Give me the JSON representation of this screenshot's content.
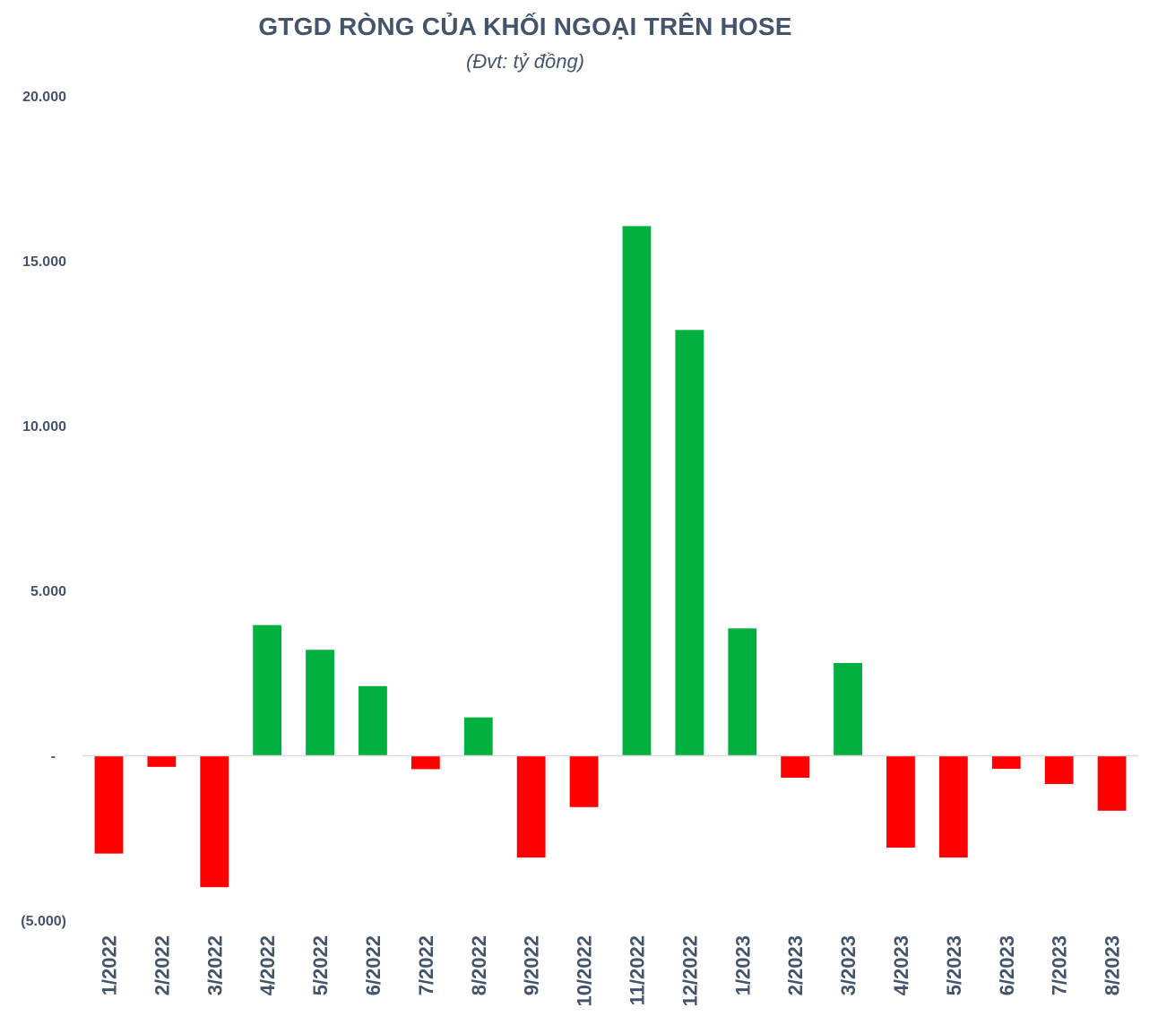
{
  "chart_data": {
    "type": "bar",
    "title": "GTGD RÒNG CỦA KHỐI NGOẠI TRÊN HOSE",
    "subtitle": "(Đvt: tỷ đồng)",
    "xlabel": "",
    "ylabel": "",
    "ylim": [
      -5000,
      20000
    ],
    "yticks": [
      -5000,
      0,
      5000,
      10000,
      15000,
      20000
    ],
    "ytick_labels": [
      "(5.000)",
      "-",
      "5.000",
      "10.000",
      "15.000",
      "20.000"
    ],
    "grid": false,
    "legend": "none",
    "categories": [
      "1/2022",
      "2/2022",
      "3/2022",
      "4/2022",
      "5/2022",
      "6/2022",
      "7/2022",
      "8/2022",
      "9/2022",
      "10/2022",
      "11/2022",
      "12/2022",
      "1/2023",
      "2/2023",
      "3/2023",
      "4/2023",
      "5/2023",
      "6/2023",
      "7/2023",
      "8/2023"
    ],
    "values": [
      -2980,
      -350,
      -4000,
      3950,
      3200,
      2100,
      -420,
      1150,
      -3100,
      -1570,
      16050,
      12900,
      3850,
      -680,
      2800,
      -2800,
      -3100,
      -410,
      -870,
      -1680
    ],
    "colors": {
      "positive": "#00b140",
      "negative": "#ff0000",
      "axis": "#d9d9d9",
      "text": "#44546a"
    }
  }
}
